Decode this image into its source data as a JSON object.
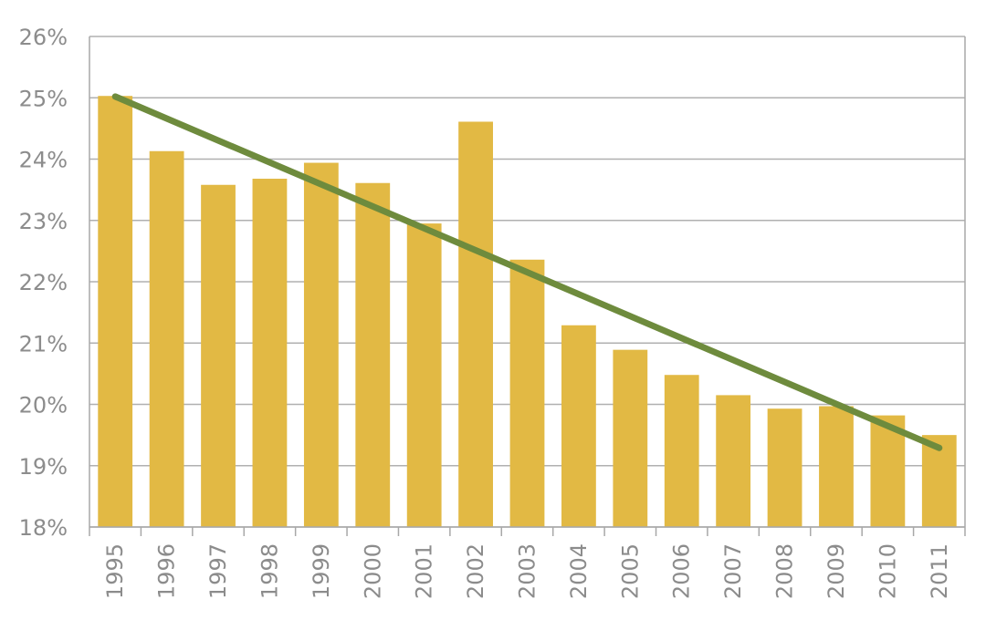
{
  "chart_data": {
    "type": "bar",
    "categories": [
      "1995",
      "1996",
      "1997",
      "1998",
      "1999",
      "2000",
      "2001",
      "2002",
      "2003",
      "2004",
      "2005",
      "2006",
      "2007",
      "2008",
      "2009",
      "2010",
      "2011"
    ],
    "values": [
      25.03,
      24.13,
      23.58,
      23.68,
      23.94,
      23.61,
      22.95,
      24.61,
      22.36,
      21.29,
      20.89,
      20.48,
      20.15,
      19.93,
      19.97,
      19.82,
      19.5
    ],
    "y_tick_labels": [
      "18%",
      "19%",
      "20%",
      "21%",
      "22%",
      "23%",
      "24%",
      "25%",
      "26%"
    ],
    "ylim": [
      18,
      26
    ],
    "grid": true,
    "trendline": {
      "start_value": 25.02,
      "end_value": 19.29
    },
    "colors": {
      "bar": "#e2b944",
      "trendline": "#6e8b3d",
      "grid": "#b0b0b0",
      "tick_text": "#8c8c8c",
      "axis": "#a8a8a8"
    }
  }
}
